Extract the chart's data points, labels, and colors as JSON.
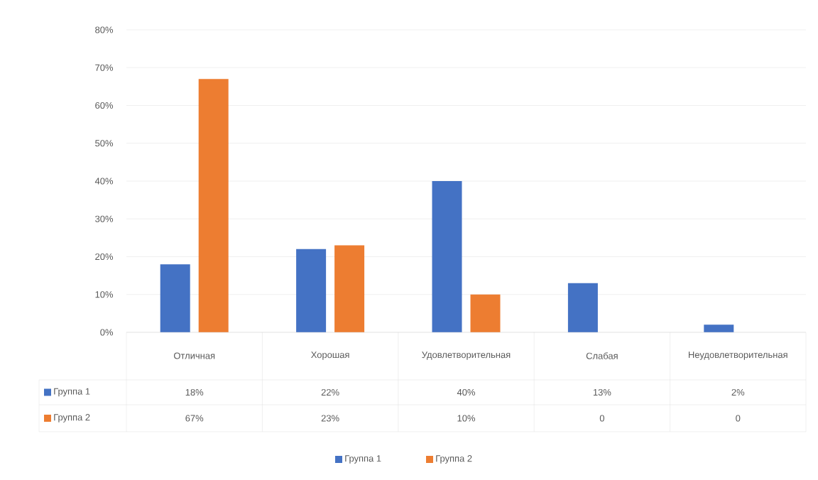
{
  "chart_data": {
    "type": "bar",
    "categories": [
      "Отличная",
      "Хорошая",
      "Удовлетворительная",
      "Слабая",
      "Неудовлетворительная"
    ],
    "series": [
      {
        "name": "Группа 1",
        "color": "#4472c4",
        "values": [
          18,
          22,
          40,
          13,
          2
        ],
        "value_labels": [
          "18%",
          "22%",
          "40%",
          "13%",
          "2%"
        ]
      },
      {
        "name": "Группа 2",
        "color": "#ed7d31",
        "values": [
          67,
          23,
          10,
          0,
          0
        ],
        "value_labels": [
          "67%",
          "23%",
          "10%",
          "0",
          "0"
        ]
      }
    ],
    "ylim": [
      0,
      80
    ],
    "yticks": [
      {
        "value": 0,
        "label": "0%"
      },
      {
        "value": 10,
        "label": "10%"
      },
      {
        "value": 20,
        "label": "20%"
      },
      {
        "value": 30,
        "label": "30%"
      },
      {
        "value": 40,
        "label": "40%"
      },
      {
        "value": 50,
        "label": "50%"
      },
      {
        "value": 60,
        "label": "60%"
      },
      {
        "value": 70,
        "label": "70%"
      },
      {
        "value": 80,
        "label": "80%"
      }
    ],
    "grid": "y",
    "legend": "bottom"
  }
}
